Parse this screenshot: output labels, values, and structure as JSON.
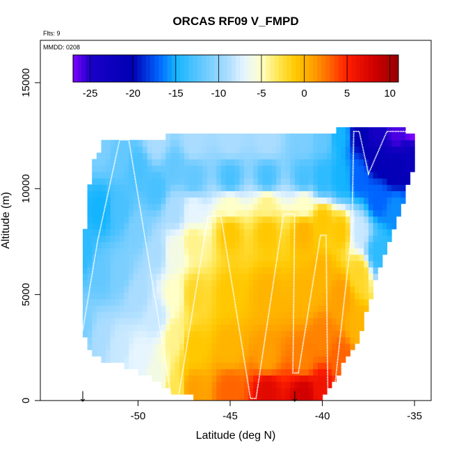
{
  "chart_data": {
    "type": "heatmap",
    "title": "ORCAS RF09 V_FMPD",
    "flights_note": "Flts: 9",
    "date_note": "MMDD: 0208",
    "xlabel": "Latitude (deg N)",
    "ylabel": "Altitude (m)",
    "xlim": [
      -55.3,
      -34.1
    ],
    "ylim": [
      0,
      17000
    ],
    "x_ticks": [
      -50,
      -45,
      -40,
      -35
    ],
    "x_tick_labels": [
      "-50",
      "-45",
      "-40",
      "-35"
    ],
    "y_ticks": [
      0,
      5000,
      10000,
      15000
    ],
    "y_tick_labels": [
      "0",
      "5000",
      "10000",
      "15000"
    ],
    "colorbar": {
      "min": -27,
      "max": 11,
      "ticks": [
        -25,
        -20,
        -15,
        -10,
        -5,
        0,
        5,
        10
      ],
      "tick_labels": [
        "-25",
        "-20",
        "-15",
        "-10",
        "-5",
        "0",
        "5",
        "10"
      ],
      "color_stops": [
        {
          "value": -27,
          "color": "#7f00ff"
        },
        {
          "value": -25,
          "color": "#1a00c8"
        },
        {
          "value": -20,
          "color": "#0000b4"
        },
        {
          "value": -17,
          "color": "#0064ff"
        },
        {
          "value": -15,
          "color": "#14b4ff"
        },
        {
          "value": -12,
          "color": "#64c8ff"
        },
        {
          "value": -9,
          "color": "#aadcff"
        },
        {
          "value": -7,
          "color": "#e6f5ff"
        },
        {
          "value": -5,
          "color": "#ffffc8"
        },
        {
          "value": -3,
          "color": "#ffe650"
        },
        {
          "value": -1,
          "color": "#ffc800"
        },
        {
          "value": 1,
          "color": "#ffa000"
        },
        {
          "value": 3,
          "color": "#ff6400"
        },
        {
          "value": 5,
          "color": "#ff1e00"
        },
        {
          "value": 8,
          "color": "#d20000"
        },
        {
          "value": 11,
          "color": "#960000"
        }
      ]
    },
    "field_bounds": [
      [
        -53.0,
        3100,
        7000
      ],
      [
        -52.5,
        2300,
        11300
      ],
      [
        -51.8,
        1900,
        12300
      ],
      [
        -51.0,
        1700,
        12400
      ],
      [
        -50.0,
        1400,
        12400
      ],
      [
        -49.0,
        900,
        12400
      ],
      [
        -48.0,
        200,
        12500
      ],
      [
        -46.0,
        100,
        12500
      ],
      [
        -44.0,
        0,
        12500
      ],
      [
        -42.0,
        0,
        12500
      ],
      [
        -40.0,
        0,
        12500
      ],
      [
        -39.5,
        800,
        12600
      ],
      [
        -39.0,
        1500,
        12800
      ],
      [
        -38.0,
        3000,
        12800
      ],
      [
        -37.5,
        4500,
        12800
      ],
      [
        -37.0,
        6000,
        12800
      ],
      [
        -36.0,
        8500,
        12800
      ],
      [
        -35.0,
        11000,
        12700
      ]
    ],
    "field_samples": [
      [
        -53.0,
        3500,
        -11
      ],
      [
        -53.0,
        7000,
        -14
      ],
      [
        -52.0,
        3000,
        -9
      ],
      [
        -52.0,
        6000,
        -12
      ],
      [
        -52.0,
        9000,
        -15
      ],
      [
        -52.0,
        12000,
        -11
      ],
      [
        -51.0,
        2500,
        -8
      ],
      [
        -51.0,
        6000,
        -11
      ],
      [
        -51.0,
        9000,
        -13
      ],
      [
        -51.0,
        11500,
        -12
      ],
      [
        -50.0,
        2000,
        -7
      ],
      [
        -50.0,
        5000,
        -9
      ],
      [
        -50.0,
        8000,
        -11
      ],
      [
        -50.0,
        11000,
        -13
      ],
      [
        -49.0,
        1000,
        -6
      ],
      [
        -49.0,
        4000,
        -8
      ],
      [
        -49.0,
        7000,
        -9
      ],
      [
        -49.0,
        10000,
        -13
      ],
      [
        -49.0,
        12200,
        -9
      ],
      [
        -48.0,
        500,
        -3
      ],
      [
        -48.0,
        3000,
        -4
      ],
      [
        -48.0,
        5000,
        -5
      ],
      [
        -48.0,
        7000,
        -6
      ],
      [
        -48.0,
        9000,
        -9
      ],
      [
        -48.0,
        11000,
        -12
      ],
      [
        -47.0,
        500,
        1
      ],
      [
        -47.0,
        2500,
        -1
      ],
      [
        -47.0,
        5000,
        -2
      ],
      [
        -47.0,
        7500,
        -4
      ],
      [
        -47.0,
        9000,
        -7
      ],
      [
        -47.0,
        10500,
        -12
      ],
      [
        -47.0,
        12200,
        -9
      ],
      [
        -45.0,
        500,
        3
      ],
      [
        -45.0,
        2500,
        0
      ],
      [
        -45.0,
        5000,
        -1
      ],
      [
        -45.0,
        8000,
        -1
      ],
      [
        -45.0,
        9200,
        -5
      ],
      [
        -45.0,
        10500,
        -13
      ],
      [
        -45.0,
        12300,
        -9
      ],
      [
        -43.0,
        500,
        7
      ],
      [
        -43.0,
        2000,
        1
      ],
      [
        -43.0,
        5000,
        0
      ],
      [
        -43.0,
        8000,
        -1
      ],
      [
        -43.0,
        9300,
        -4
      ],
      [
        -43.0,
        10500,
        -13
      ],
      [
        -43.0,
        12300,
        -9
      ],
      [
        -41.0,
        300,
        8
      ],
      [
        -41.0,
        2000,
        2
      ],
      [
        -41.0,
        5000,
        0
      ],
      [
        -41.0,
        8000,
        0
      ],
      [
        -41.0,
        9300,
        -5
      ],
      [
        -41.0,
        10500,
        -13
      ],
      [
        -41.0,
        12300,
        -11
      ],
      [
        -40.0,
        500,
        6
      ],
      [
        -40.0,
        3000,
        2
      ],
      [
        -40.0,
        6000,
        0
      ],
      [
        -40.0,
        8500,
        -1
      ],
      [
        -40.0,
        10500,
        -14
      ],
      [
        -40.0,
        12400,
        -12
      ],
      [
        -39.0,
        2000,
        3
      ],
      [
        -39.0,
        5000,
        1
      ],
      [
        -39.0,
        8000,
        -1
      ],
      [
        -39.0,
        10500,
        -15
      ],
      [
        -39.0,
        12500,
        -15
      ],
      [
        -38.0,
        3500,
        0
      ],
      [
        -38.0,
        6000,
        -2
      ],
      [
        -38.0,
        8000,
        -8
      ],
      [
        -38.0,
        10500,
        -17
      ],
      [
        -38.0,
        12600,
        -20
      ],
      [
        -37.0,
        7000,
        -14
      ],
      [
        -37.0,
        9500,
        -17
      ],
      [
        -37.0,
        11500,
        -21
      ],
      [
        -37.0,
        12700,
        -24
      ],
      [
        -36.0,
        9000,
        -16
      ],
      [
        -36.0,
        11000,
        -21
      ],
      [
        -36.0,
        12700,
        -26
      ],
      [
        -35.0,
        11500,
        -22
      ],
      [
        -35.0,
        12700,
        -27
      ]
    ],
    "flight_track": [
      [
        -53.0,
        3300
      ],
      [
        -52.2,
        7500
      ],
      [
        -51.0,
        12300
      ],
      [
        -50.5,
        12300
      ],
      [
        -48.2,
        200
      ],
      [
        -47.8,
        200
      ],
      [
        -46.2,
        8700
      ],
      [
        -45.5,
        8700
      ],
      [
        -43.9,
        100
      ],
      [
        -43.6,
        100
      ],
      [
        -42.1,
        8800
      ],
      [
        -41.5,
        8800
      ],
      [
        -41.6,
        1300
      ],
      [
        -41.3,
        1300
      ],
      [
        -40.1,
        7800
      ],
      [
        -39.8,
        7800
      ],
      [
        -39.7,
        100
      ],
      [
        -39.4,
        100
      ],
      [
        -38.4,
        8000
      ],
      [
        -38.3,
        12700
      ],
      [
        -38.0,
        12700
      ],
      [
        -37.5,
        10700
      ],
      [
        -36.5,
        12700
      ],
      [
        -34.9,
        12700
      ]
    ],
    "markers": [
      {
        "x": -53.0,
        "label": "↓"
      },
      {
        "x": -41.5,
        "label": "↓"
      }
    ]
  }
}
